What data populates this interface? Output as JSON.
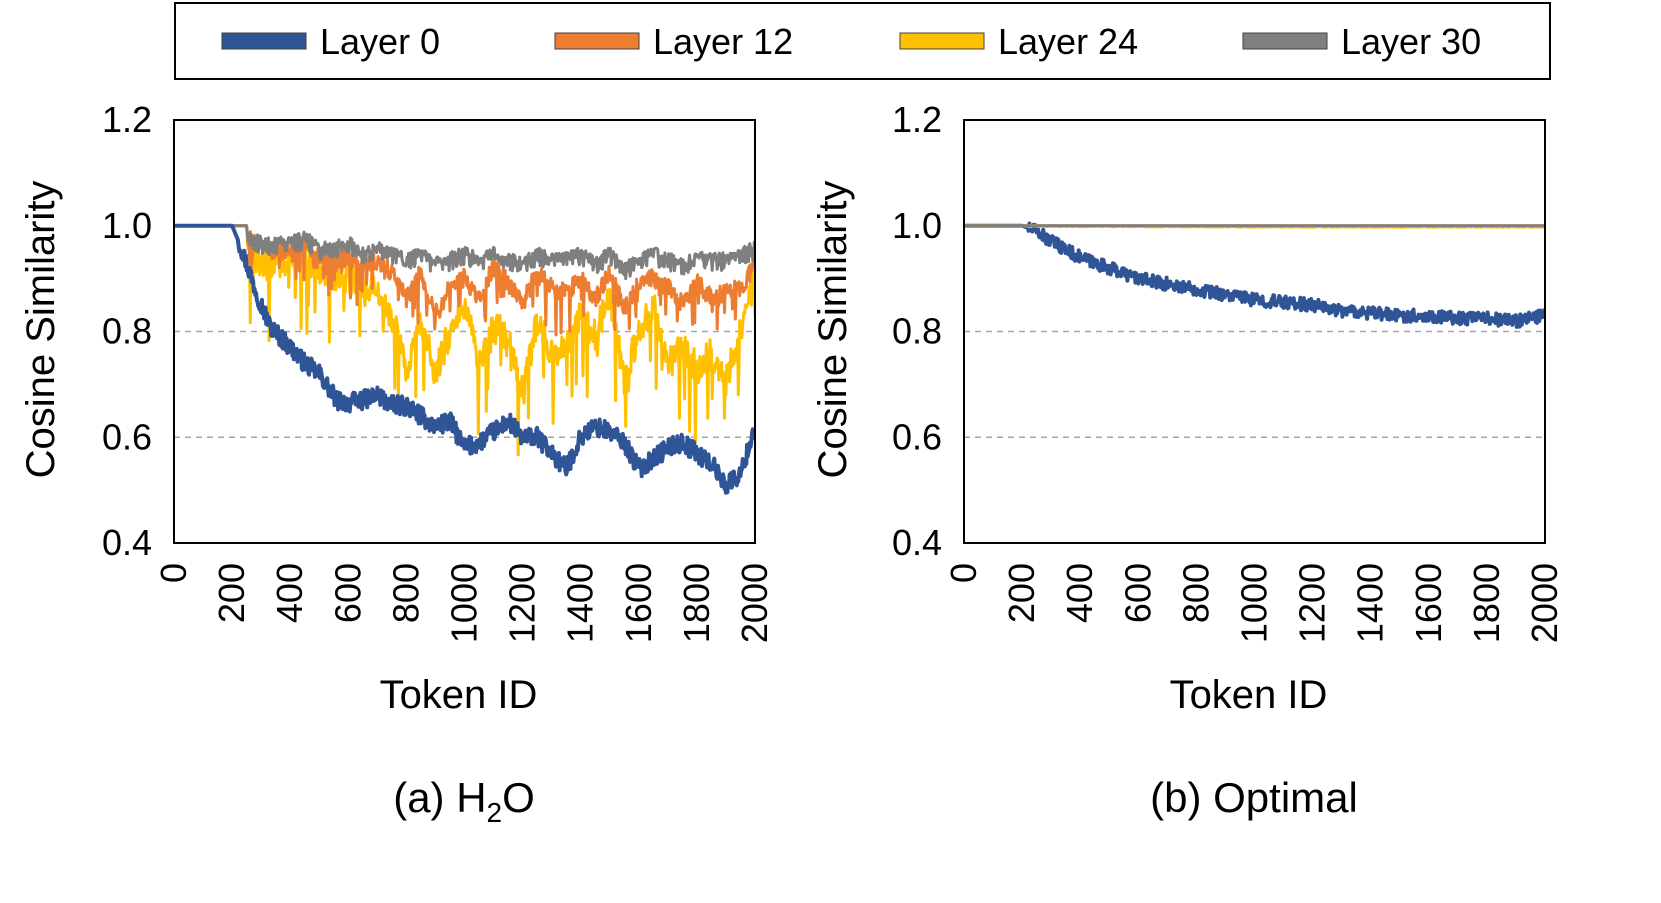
{
  "legend": {
    "entries": [
      {
        "label": "Layer 0",
        "color": "#2f5597"
      },
      {
        "label": "Layer 12",
        "color": "#ed7d31"
      },
      {
        "label": "Layer 24",
        "color": "#ffc000"
      },
      {
        "label": "Layer 30",
        "color": "#7f7f7f"
      }
    ]
  },
  "chart_data": [
    {
      "type": "line",
      "caption": "(a) H",
      "caption_subscript": "2",
      "caption_suffix": "O",
      "xlabel": "Token ID",
      "ylabel": "Cosine Similarity",
      "xlim": [
        0,
        2000
      ],
      "ylim": [
        0.4,
        1.2
      ],
      "xticks": [
        "0",
        "200",
        "400",
        "600",
        "800",
        "1000",
        "1200",
        "1400",
        "1600",
        "1800",
        "2000"
      ],
      "yticks": [
        "0.4",
        "0.6",
        "0.8",
        "1.0",
        "1.2"
      ],
      "grid": "horizontal-dashed",
      "series": [
        {
          "name": "Layer 0",
          "color": "#2f5597",
          "x": [
            0,
            200,
            230,
            280,
            330,
            400,
            450,
            500,
            560,
            600,
            650,
            700,
            750,
            800,
            850,
            900,
            950,
            1000,
            1050,
            1100,
            1150,
            1200,
            1250,
            1300,
            1350,
            1400,
            1450,
            1500,
            1550,
            1600,
            1650,
            1700,
            1750,
            1800,
            1850,
            1900,
            1950,
            2000
          ],
          "y": [
            1.0,
            1.0,
            0.96,
            0.88,
            0.81,
            0.77,
            0.74,
            0.72,
            0.67,
            0.665,
            0.67,
            0.68,
            0.66,
            0.66,
            0.64,
            0.62,
            0.63,
            0.58,
            0.59,
            0.61,
            0.63,
            0.6,
            0.6,
            0.57,
            0.54,
            0.6,
            0.62,
            0.61,
            0.59,
            0.54,
            0.56,
            0.58,
            0.59,
            0.57,
            0.55,
            0.51,
            0.53,
            0.62
          ]
        },
        {
          "name": "Layer 12",
          "color": "#ed7d31",
          "x": [
            0,
            250,
            300,
            350,
            400,
            450,
            500,
            550,
            600,
            650,
            700,
            750,
            800,
            850,
            900,
            950,
            1000,
            1050,
            1100,
            1150,
            1200,
            1250,
            1300,
            1350,
            1400,
            1450,
            1500,
            1550,
            1600,
            1650,
            1700,
            1750,
            1800,
            1850,
            1900,
            1950,
            2000
          ],
          "y": [
            1.0,
            1.0,
            0.98,
            0.97,
            0.97,
            0.98,
            0.96,
            0.95,
            0.96,
            0.94,
            0.95,
            0.93,
            0.88,
            0.93,
            0.85,
            0.9,
            0.92,
            0.88,
            0.94,
            0.91,
            0.87,
            0.93,
            0.9,
            0.89,
            0.92,
            0.88,
            0.93,
            0.86,
            0.91,
            0.92,
            0.9,
            0.87,
            0.91,
            0.88,
            0.89,
            0.9,
            0.94
          ]
        },
        {
          "name": "Layer 24",
          "color": "#ffc000",
          "x": [
            0,
            250,
            300,
            350,
            400,
            450,
            500,
            550,
            600,
            650,
            700,
            750,
            800,
            850,
            900,
            950,
            1000,
            1050,
            1100,
            1150,
            1200,
            1250,
            1300,
            1350,
            1400,
            1450,
            1500,
            1550,
            1600,
            1650,
            1700,
            1750,
            1800,
            1850,
            1900,
            1950,
            2000
          ],
          "y": [
            1.0,
            1.0,
            0.95,
            0.96,
            0.97,
            0.97,
            0.95,
            0.94,
            0.93,
            0.92,
            0.9,
            0.86,
            0.76,
            0.85,
            0.75,
            0.83,
            0.88,
            0.77,
            0.84,
            0.82,
            0.71,
            0.85,
            0.79,
            0.8,
            0.86,
            0.82,
            0.9,
            0.74,
            0.83,
            0.88,
            0.78,
            0.8,
            0.76,
            0.79,
            0.74,
            0.83,
            0.95
          ]
        },
        {
          "name": "Layer 30",
          "color": "#7f7f7f",
          "x": [
            0,
            250,
            300,
            350,
            400,
            450,
            500,
            550,
            600,
            650,
            700,
            750,
            800,
            850,
            900,
            950,
            1000,
            1050,
            1100,
            1150,
            1200,
            1250,
            1300,
            1350,
            1400,
            1450,
            1500,
            1550,
            1600,
            1650,
            1700,
            1750,
            1800,
            1850,
            1900,
            1950,
            2000
          ],
          "y": [
            1.0,
            1.0,
            0.98,
            0.98,
            0.98,
            0.99,
            0.97,
            0.97,
            0.98,
            0.96,
            0.97,
            0.96,
            0.95,
            0.96,
            0.94,
            0.95,
            0.96,
            0.95,
            0.96,
            0.95,
            0.94,
            0.96,
            0.95,
            0.95,
            0.96,
            0.94,
            0.96,
            0.93,
            0.95,
            0.96,
            0.95,
            0.94,
            0.95,
            0.95,
            0.95,
            0.96,
            0.97
          ]
        }
      ]
    },
    {
      "type": "line",
      "caption": "(b) Optimal",
      "caption_subscript": "",
      "caption_suffix": "",
      "xlabel": "Token ID",
      "ylabel": "Cosine Similarity",
      "xlim": [
        0,
        2000
      ],
      "ylim": [
        0.4,
        1.2
      ],
      "xticks": [
        "0",
        "200",
        "400",
        "600",
        "800",
        "1000",
        "1200",
        "1400",
        "1600",
        "1800",
        "2000"
      ],
      "yticks": [
        "0.4",
        "0.6",
        "0.8",
        "1.0",
        "1.2"
      ],
      "grid": "horizontal-dashed",
      "series": [
        {
          "name": "Layer 0",
          "color": "#2f5597",
          "x": [
            0,
            200,
            250,
            300,
            400,
            500,
            600,
            700,
            800,
            900,
            1000,
            1100,
            1200,
            1300,
            1400,
            1500,
            1600,
            1700,
            1800,
            1900,
            2000
          ],
          "y": [
            1.0,
            1.0,
            0.99,
            0.97,
            0.94,
            0.92,
            0.9,
            0.89,
            0.88,
            0.87,
            0.86,
            0.855,
            0.85,
            0.84,
            0.835,
            0.83,
            0.83,
            0.825,
            0.825,
            0.82,
            0.83
          ]
        },
        {
          "name": "Layer 12",
          "color": "#ed7d31",
          "x": [
            0,
            2000
          ],
          "y": [
            1.0,
            1.0
          ]
        },
        {
          "name": "Layer 24",
          "color": "#ffc000",
          "x": [
            0,
            1000,
            2000
          ],
          "y": [
            1.0,
            0.998,
            0.998
          ]
        },
        {
          "name": "Layer 30",
          "color": "#7f7f7f",
          "x": [
            0,
            2000
          ],
          "y": [
            1.0,
            1.0
          ]
        }
      ]
    }
  ]
}
